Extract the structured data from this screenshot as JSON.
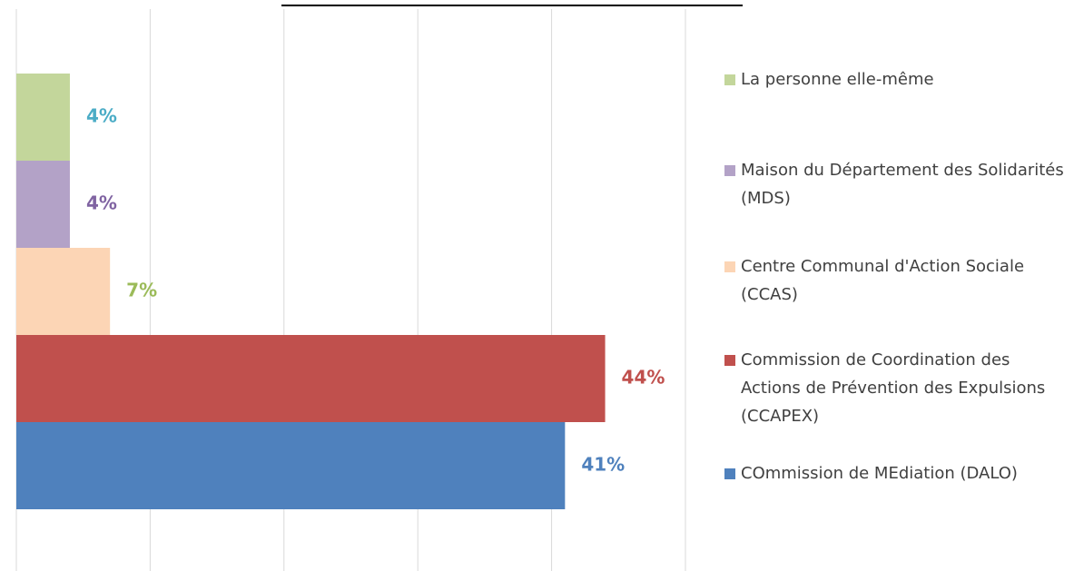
{
  "chart_data": {
    "type": "barh",
    "categories": [
      "La personne elle-même",
      "Maison du Département des Solidarités (MDS)",
      "Centre Communal d'Action Sociale (CCAS)",
      "Commission de Coordination des Actions de Prévention des Expulsions (CCAPEX)",
      "COmmission de MEdiation (DALO)"
    ],
    "values": [
      4,
      4,
      7,
      44,
      41
    ],
    "value_labels": [
      "4%",
      "4%",
      "7%",
      "44%",
      "41%"
    ],
    "colors": [
      "#c3d69b",
      "#b3a2c7",
      "#fcd5b5",
      "#c0504d",
      "#4f81bd"
    ],
    "label_colors": [
      "#4bacc6",
      "#8064a2",
      "#9bbb59",
      "#c0504d",
      "#4f81bd"
    ],
    "xlim": [
      0,
      50
    ],
    "xticks": [
      0,
      10,
      20,
      30,
      40,
      50
    ],
    "grid": true
  }
}
